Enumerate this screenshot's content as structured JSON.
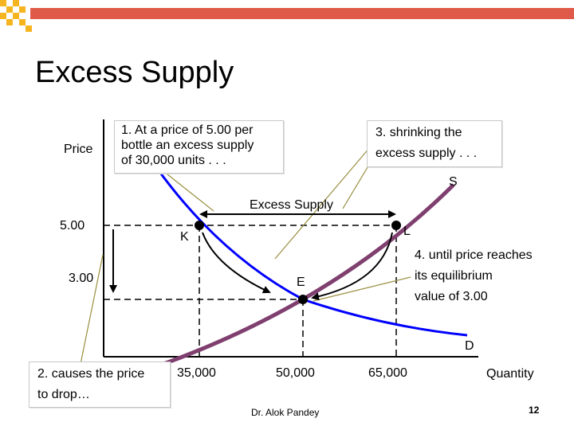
{
  "slide": {
    "title": "Excess Supply",
    "footer_author": "Dr. Alok Pandey",
    "page_number": "12"
  },
  "axes": {
    "y_label": "Price",
    "x_label": "Quantity",
    "price_ticks": [
      "5.00",
      "3.00"
    ],
    "quantity_ticks": [
      "35,000",
      "50,000",
      "65,000"
    ]
  },
  "curves": {
    "supply_label": "S",
    "demand_label": "D",
    "supply_color": "#7f3f6f",
    "demand_color": "#0000ff"
  },
  "points": {
    "k": "K",
    "l": "L",
    "e": "E"
  },
  "excess_supply_label": "Excess Supply",
  "callouts": {
    "step1_line1": "1. At a price of 5.00 per",
    "step1_line2": "bottle an excess supply",
    "step1_line3": "of 30,000 units . . .",
    "step2_line1": "2. causes the price",
    "step2_line2": "to drop…",
    "step3_line1": "3. shrinking the",
    "step3_line2": "excess supply . . .",
    "step4_line1": "4. until price reaches",
    "step4_line2": "its equilibrium",
    "step4_line3": "value of 3.00"
  },
  "decoration": {
    "bar_color": "#e05a4a",
    "square_color": "#f5b520"
  }
}
